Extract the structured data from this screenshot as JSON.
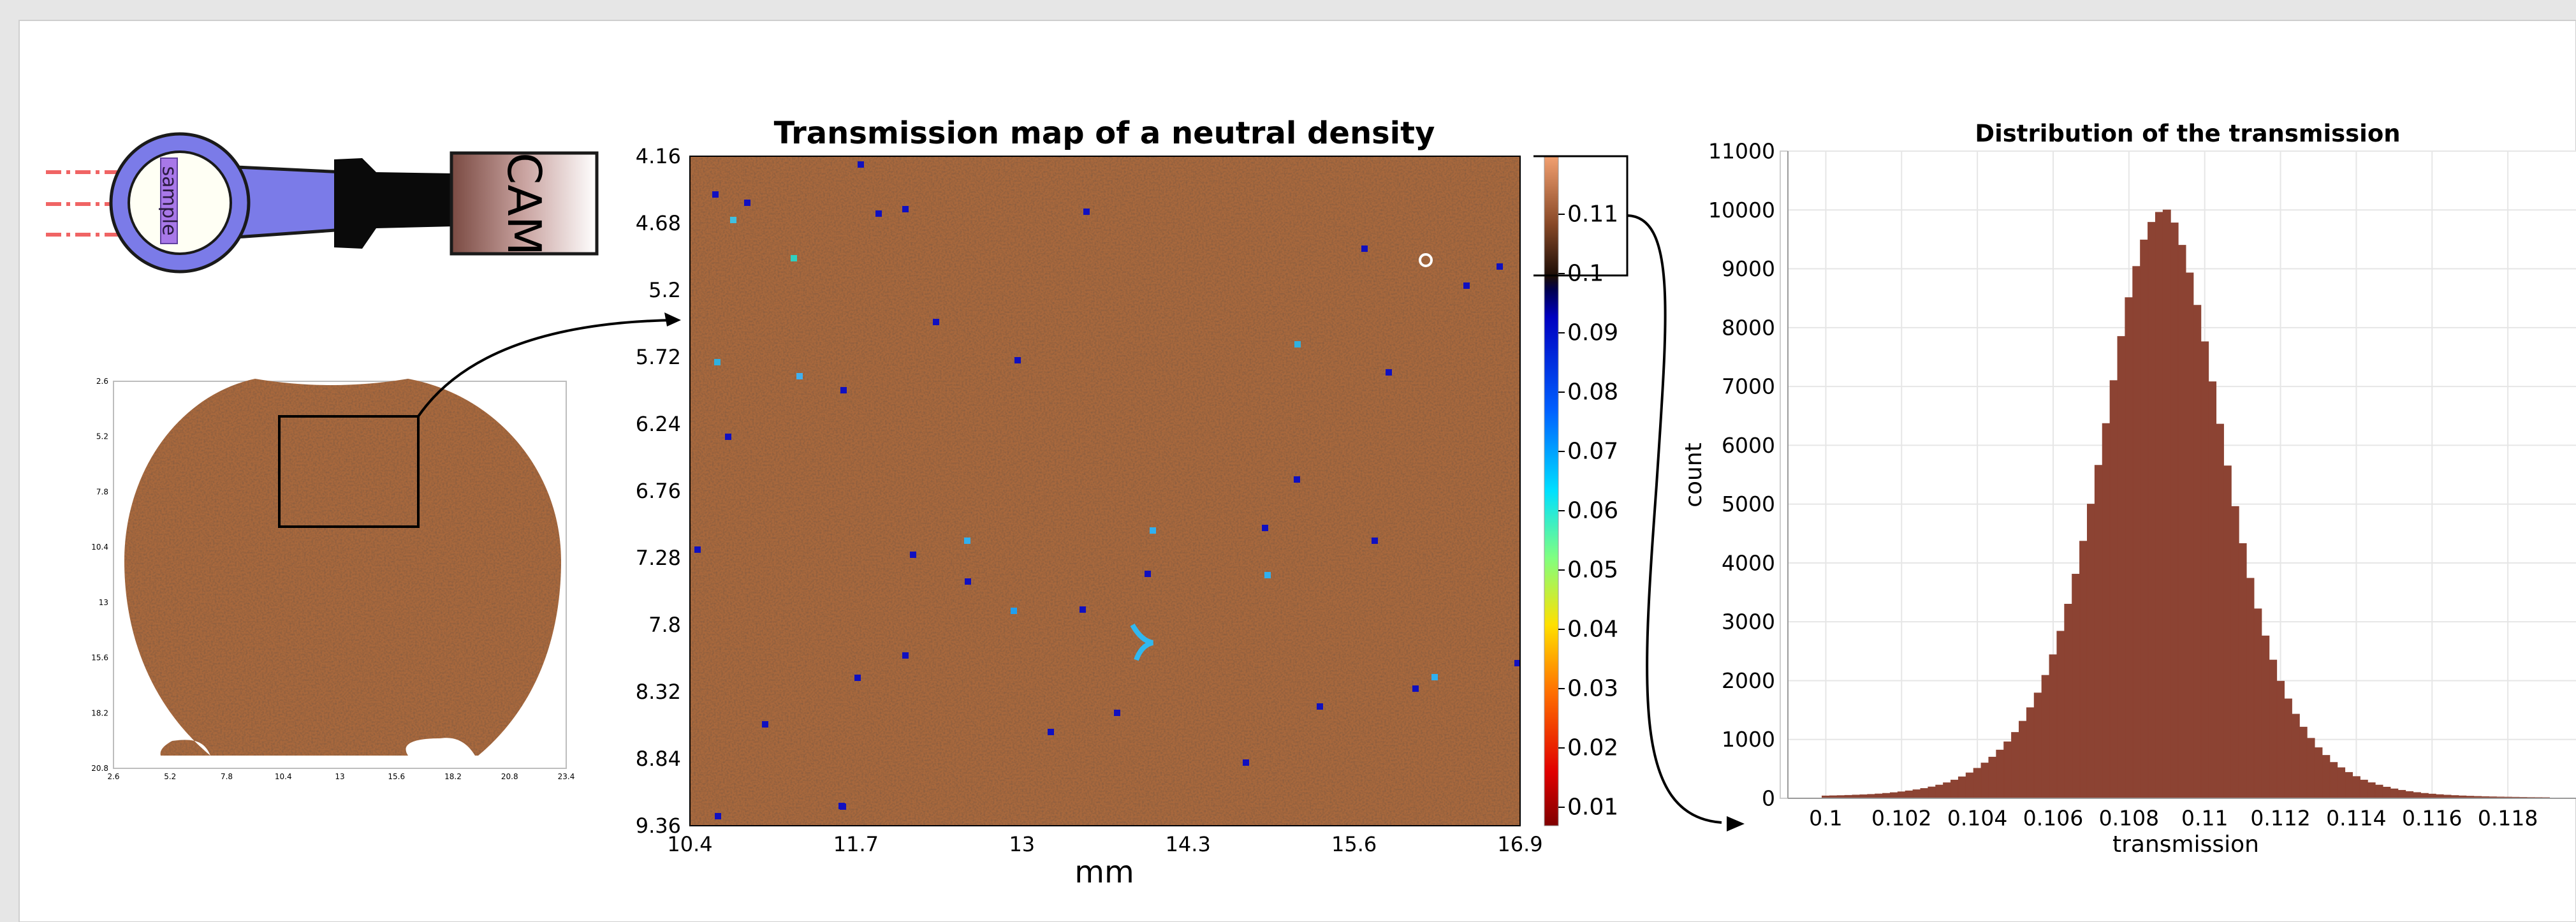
{
  "setup": {
    "sample_label": "sample",
    "camera_label": "CAM"
  },
  "thumbnail": {
    "x_ticks": [
      "2.6",
      "5.2",
      "7.8",
      "10.4",
      "13",
      "15.6",
      "18.2",
      "20.8",
      "23.4"
    ],
    "y_ticks": [
      "2.6",
      "5.2",
      "7.8",
      "10.4",
      "13",
      "15.6",
      "18.2",
      "20.8"
    ]
  },
  "map": {
    "title": "Transmission map of a neutral density",
    "xlabel": "mm",
    "x_ticks": [
      "10.4",
      "11.7",
      "13",
      "14.3",
      "15.6",
      "16.9"
    ],
    "y_ticks": [
      "4.16",
      "4.68",
      "5.2",
      "5.72",
      "6.24",
      "6.76",
      "7.28",
      "7.8",
      "8.32",
      "8.84",
      "9.36"
    ],
    "colorbar_ticks": [
      "0.11",
      "0.1",
      "0.09",
      "0.08",
      "0.07",
      "0.06",
      "0.05",
      "0.04",
      "0.03",
      "0.02",
      "0.01"
    ]
  },
  "chart_data": {
    "type": "bar",
    "title": "Distribution of the transmission",
    "xlabel": "transmission",
    "ylabel": "count",
    "xlim": [
      0.099,
      0.12
    ],
    "ylim": [
      0,
      11000
    ],
    "x_ticks": [
      "0.1",
      "0.102",
      "0.104",
      "0.106",
      "0.108",
      "0.11",
      "0.112",
      "0.114",
      "0.116",
      "0.118"
    ],
    "y_ticks": [
      "0",
      "1000",
      "2000",
      "3000",
      "4000",
      "5000",
      "6000",
      "7000",
      "8000",
      "9000",
      "10000",
      "11000"
    ],
    "x": [
      0.1,
      0.1002,
      0.1004,
      0.1006,
      0.1008,
      0.101,
      0.1012,
      0.1014,
      0.1016,
      0.1018,
      0.102,
      0.1022,
      0.1024,
      0.1026,
      0.1028,
      0.103,
      0.1032,
      0.1034,
      0.1036,
      0.1038,
      0.104,
      0.1042,
      0.1044,
      0.1046,
      0.1048,
      0.105,
      0.1052,
      0.1054,
      0.1056,
      0.1058,
      0.106,
      0.1062,
      0.1064,
      0.1066,
      0.1068,
      0.107,
      0.1072,
      0.1074,
      0.1076,
      0.1078,
      0.108,
      0.1082,
      0.1084,
      0.1086,
      0.1088,
      0.109,
      0.1092,
      0.1094,
      0.1096,
      0.1098,
      0.11,
      0.1102,
      0.1104,
      0.1106,
      0.1108,
      0.111,
      0.1112,
      0.1114,
      0.1116,
      0.1118,
      0.112,
      0.1122,
      0.1124,
      0.1126,
      0.1128,
      0.113,
      0.1132,
      0.1134,
      0.1136,
      0.1138,
      0.114,
      0.1142,
      0.1144,
      0.1146,
      0.1148,
      0.115,
      0.1152,
      0.1154,
      0.1156,
      0.1158,
      0.116,
      0.1162,
      0.1164,
      0.1166,
      0.1168,
      0.117,
      0.1172,
      0.1174,
      0.1176,
      0.1178,
      0.118,
      0.1182,
      0.1184,
      0.1186,
      0.1188,
      0.119
    ],
    "values": [
      40,
      43,
      46,
      50,
      55,
      60,
      66,
      74,
      84,
      96,
      110,
      126,
      145,
      167,
      193,
      225,
      264,
      310,
      365,
      432,
      510,
      600,
      700,
      820,
      960,
      1120,
      1310,
      1540,
      1790,
      2090,
      2440,
      2840,
      3300,
      3810,
      4370,
      5000,
      5660,
      6370,
      7100,
      7850,
      8510,
      9040,
      9490,
      9790,
      9960,
      10000,
      9780,
      9400,
      8930,
      8380,
      7760,
      7080,
      6360,
      5650,
      4960,
      4330,
      3740,
      3220,
      2760,
      2350,
      1990,
      1690,
      1430,
      1210,
      1020,
      860,
      730,
      610,
      520,
      440,
      370,
      310,
      265,
      225,
      190,
      160,
      136,
      115,
      98,
      84,
      72,
      62,
      54,
      47,
      41,
      36,
      32,
      28,
      25,
      22,
      20,
      18,
      16,
      14,
      13,
      12
    ]
  }
}
